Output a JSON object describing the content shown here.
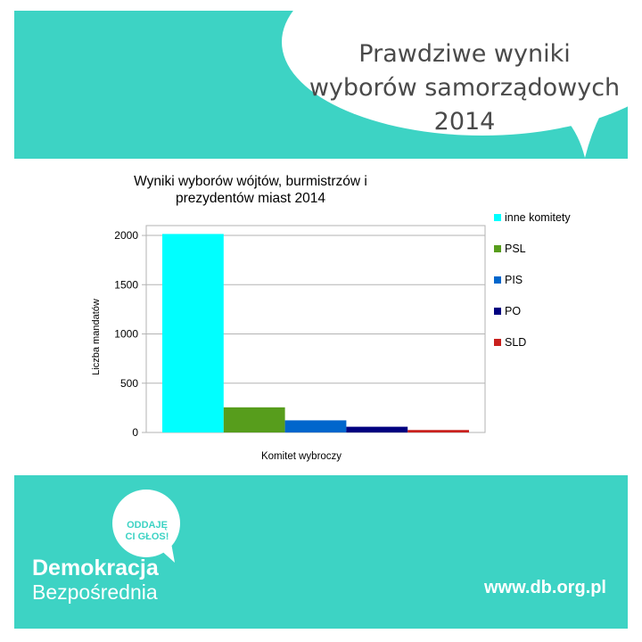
{
  "headline": "Prawdziwe wyniki wyborów samorządowych 2014",
  "colors": {
    "brand": "#3dd3c4",
    "headline_text": "#4a4a4a"
  },
  "chart_data": {
    "type": "bar",
    "title": "Wyniki wyborów wójtów, burmistrzów i prezydentów miast 2014",
    "xlabel": "Komitet wybroczy",
    "ylabel": "Liczba mandatów",
    "ylim": [
      0,
      2100
    ],
    "yticks": [
      0,
      500,
      1000,
      1500,
      2000
    ],
    "grid": "horizontal",
    "legend_position": "right",
    "series": [
      {
        "name": "inne komitety",
        "value": 2015,
        "color": "#00ffff"
      },
      {
        "name": "PSL",
        "value": 255,
        "color": "#579d1c"
      },
      {
        "name": "PIS",
        "value": 123,
        "color": "#0066cc"
      },
      {
        "name": "PO",
        "value": 58,
        "color": "#000080"
      },
      {
        "name": "SLD",
        "value": 25,
        "color": "#c9211e"
      }
    ]
  },
  "logo": {
    "bubble_line1": "ODDAJĘ",
    "bubble_line2": "CI GŁOS!",
    "line1": "Demokracja",
    "line2": "Bezpośrednia",
    "bubble_icon": "speech-bubble-icon"
  },
  "website": "www.db.org.pl"
}
